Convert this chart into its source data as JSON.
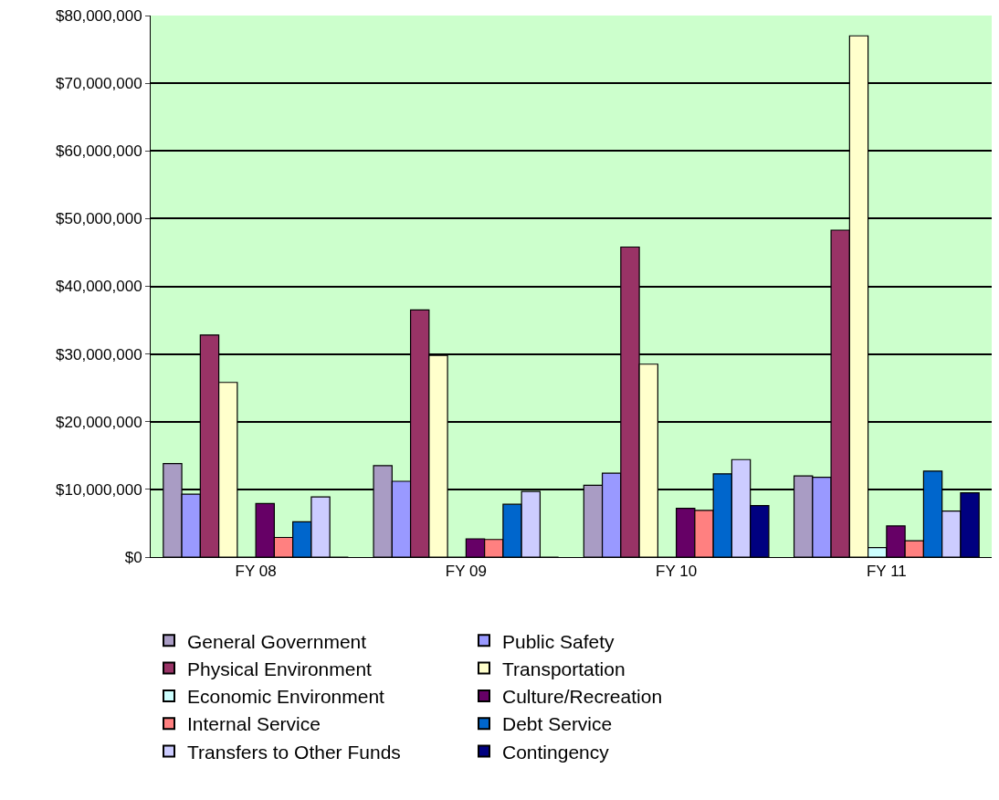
{
  "chart_data": {
    "type": "bar",
    "categories": [
      "FY 08",
      "FY 09",
      "FY 10",
      "FY 11"
    ],
    "ylim": [
      0,
      80000000
    ],
    "yticks": [
      {
        "value": 0,
        "label": "$0"
      },
      {
        "value": 10000000,
        "label": "$10,000,000"
      },
      {
        "value": 20000000,
        "label": "$20,000,000"
      },
      {
        "value": 30000000,
        "label": "$30,000,000"
      },
      {
        "value": 40000000,
        "label": "$40,000,000"
      },
      {
        "value": 50000000,
        "label": "$50,000,000"
      },
      {
        "value": 60000000,
        "label": "$60,000,000"
      },
      {
        "value": 70000000,
        "label": "$70,000,000"
      },
      {
        "value": 80000000,
        "label": "$80,000,000"
      }
    ],
    "grid": "y",
    "legend": "bottom",
    "series": [
      {
        "name": "General Government",
        "color": "#a99cc4",
        "values": [
          13800000,
          13500000,
          10600000,
          12000000
        ]
      },
      {
        "name": "Public Safety",
        "color": "#9999ff",
        "values": [
          9300000,
          11200000,
          12400000,
          11800000
        ]
      },
      {
        "name": "Physical Environment",
        "color": "#993366",
        "values": [
          32800000,
          36500000,
          45800000,
          48300000
        ]
      },
      {
        "name": "Transportation",
        "color": "#ffffcc",
        "values": [
          25800000,
          29800000,
          28500000,
          77000000
        ]
      },
      {
        "name": "Economic Environment",
        "color": "#ccffff",
        "values": [
          0,
          0,
          0,
          1400000
        ]
      },
      {
        "name": "Culture/Recreation",
        "color": "#660066",
        "values": [
          7900000,
          2700000,
          7200000,
          4600000
        ]
      },
      {
        "name": "Internal Service",
        "color": "#ff8080",
        "values": [
          2900000,
          2600000,
          6900000,
          2400000
        ]
      },
      {
        "name": "Debt Service",
        "color": "#0066cc",
        "values": [
          5200000,
          7800000,
          12300000,
          12700000
        ]
      },
      {
        "name": "Transfers to Other Funds",
        "color": "#ccccff",
        "values": [
          8900000,
          9700000,
          14400000,
          6800000
        ]
      },
      {
        "name": "Contingency",
        "color": "#000080",
        "values": [
          0,
          0,
          7600000,
          9500000
        ]
      }
    ]
  }
}
